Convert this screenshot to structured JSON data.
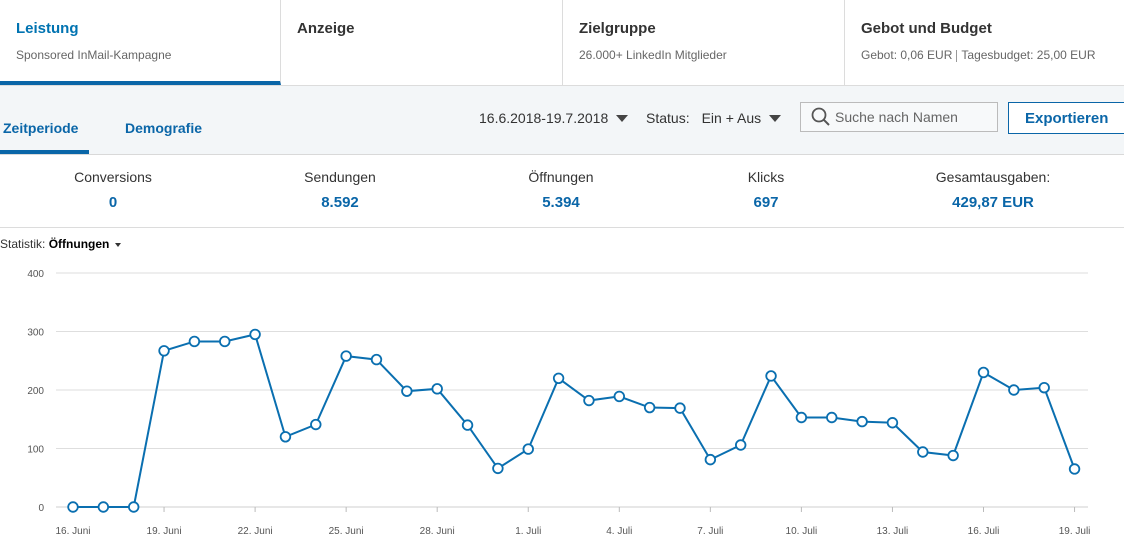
{
  "top_tabs": [
    {
      "title": "Leistung",
      "subtitle": "Sponsored InMail-Kampagne"
    },
    {
      "title": "Anzeige",
      "subtitle": ""
    },
    {
      "title": "Zielgruppe",
      "subtitle": "26.000+ LinkedIn Mitglieder"
    },
    {
      "title": "Gebot und Budget",
      "subtitle_a": "Gebot: 0,06 EUR",
      "subtitle_b": "Tagesbudget: 25,00 EUR"
    }
  ],
  "sub_tabs": {
    "zeitperiode": "Zeitperiode",
    "demografie": "Demografie"
  },
  "filters": {
    "date_range": "16.6.2018-19.7.2018",
    "status_label": "Status:",
    "status_value": "Ein + Aus",
    "search_placeholder": "Suche nach Namen",
    "export_label": "Exportieren"
  },
  "metrics": [
    {
      "label": "Conversions",
      "value": "0"
    },
    {
      "label": "Sendungen",
      "value": "8.592"
    },
    {
      "label": "Öffnungen",
      "value": "5.394"
    },
    {
      "label": "Klicks",
      "value": "697"
    },
    {
      "label": "Gesamtausgaben:",
      "value": "429,87 EUR"
    }
  ],
  "statistic": {
    "label": "Statistik:",
    "value": "Öffnungen"
  },
  "colors": {
    "accent": "#0a66a8",
    "line": "#0a6fb0"
  },
  "chart_data": {
    "type": "line",
    "ylim": [
      0,
      400
    ],
    "yticks": [
      "0",
      "100",
      "200",
      "300",
      "400"
    ],
    "xtick_labels": [
      {
        "index": 0,
        "label": "16. Juni"
      },
      {
        "index": 3,
        "label": "19. Juni"
      },
      {
        "index": 6,
        "label": "22. Juni"
      },
      {
        "index": 9,
        "label": "25. Juni"
      },
      {
        "index": 12,
        "label": "28. Juni"
      },
      {
        "index": 15,
        "label": "1. Juli"
      },
      {
        "index": 18,
        "label": "4. Juli"
      },
      {
        "index": 21,
        "label": "7. Juli"
      },
      {
        "index": 24,
        "label": "10. Juli"
      },
      {
        "index": 27,
        "label": "13. Juli"
      },
      {
        "index": 30,
        "label": "16. Juli"
      },
      {
        "index": 33,
        "label": "19. Juli"
      }
    ],
    "x": [
      "16.6.",
      "17.6.",
      "18.6.",
      "19.6.",
      "20.6.",
      "21.6.",
      "22.6.",
      "23.6.",
      "24.6.",
      "25.6.",
      "26.6.",
      "27.6.",
      "28.6.",
      "29.6.",
      "30.6.",
      "1.7.",
      "2.7.",
      "3.7.",
      "4.7.",
      "5.7.",
      "6.7.",
      "7.7.",
      "8.7.",
      "9.7.",
      "10.7.",
      "11.7.",
      "12.7.",
      "13.7.",
      "14.7.",
      "15.7.",
      "16.7.",
      "17.7.",
      "18.7.",
      "19.7."
    ],
    "series": [
      {
        "values": [
          0,
          0,
          0,
          267,
          283,
          283,
          295,
          120,
          141,
          258,
          252,
          198,
          202,
          140,
          66,
          99,
          220,
          182,
          189,
          170,
          169,
          81,
          106,
          224,
          153,
          153,
          146,
          144,
          94,
          88,
          230,
          200,
          204,
          65
        ]
      }
    ],
    "grid": true
  }
}
